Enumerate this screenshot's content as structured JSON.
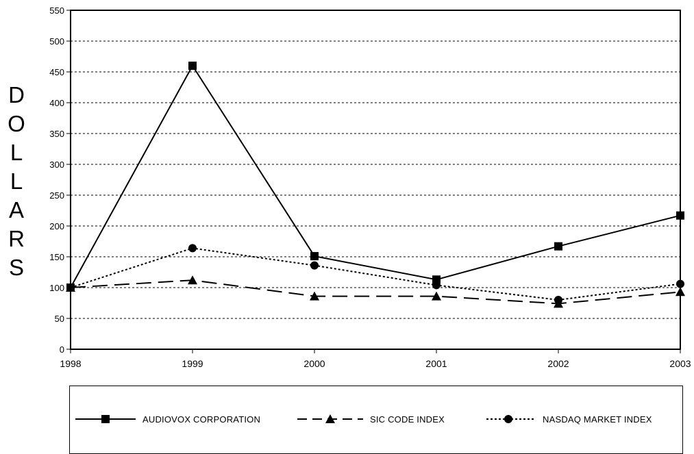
{
  "chart_data": {
    "type": "line",
    "ylabel": "DOLLARS",
    "x": [
      "1998",
      "1999",
      "2000",
      "2001",
      "2002",
      "2003"
    ],
    "ylim": [
      0,
      550
    ],
    "yticks": [
      0,
      50,
      100,
      150,
      200,
      250,
      300,
      350,
      400,
      450,
      500,
      550
    ],
    "grid": "horizontal dashed",
    "legend_position": "bottom",
    "series": [
      {
        "name": "AUDIOVOX CORPORATION",
        "values": [
          100,
          460,
          151,
          113,
          167,
          217
        ],
        "marker": "square",
        "line": "solid"
      },
      {
        "name": "SIC CODE INDEX",
        "values": [
          100,
          112,
          86,
          86,
          74,
          93
        ],
        "marker": "triangle",
        "line": "dashed"
      },
      {
        "name": "NASDAQ MARKET INDEX",
        "values": [
          100,
          164,
          136,
          104,
          80,
          106
        ],
        "marker": "circle",
        "line": "dotted"
      }
    ]
  }
}
